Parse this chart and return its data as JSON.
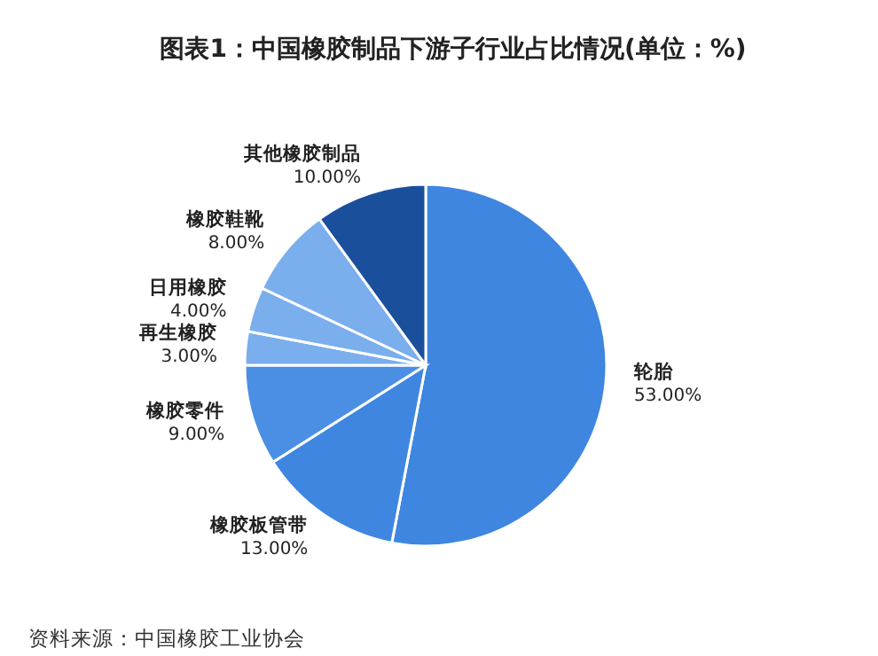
{
  "chart_data": {
    "type": "pie",
    "title": "图表1：中国橡胶制品下游子行业占比情况(单位：%)",
    "categories": [
      "轮胎",
      "橡胶板管带",
      "橡胶零件",
      "再生橡胶",
      "日用橡胶",
      "橡胶鞋靴",
      "其他橡胶制品"
    ],
    "values": [
      53,
      13,
      9,
      3,
      4,
      8,
      10
    ],
    "value_labels": [
      "53.00%",
      "13.00%",
      "9.00%",
      "3.00%",
      "4.00%",
      "8.00%",
      "10.00%"
    ],
    "colors": [
      "#3f86e0",
      "#3f86e0",
      "#4a8fe3",
      "#7aaeec",
      "#7aaeec",
      "#7aaeec",
      "#1a4f9c"
    ],
    "annotations": [
      "资料来源：中国橡胶工业协会"
    ]
  }
}
